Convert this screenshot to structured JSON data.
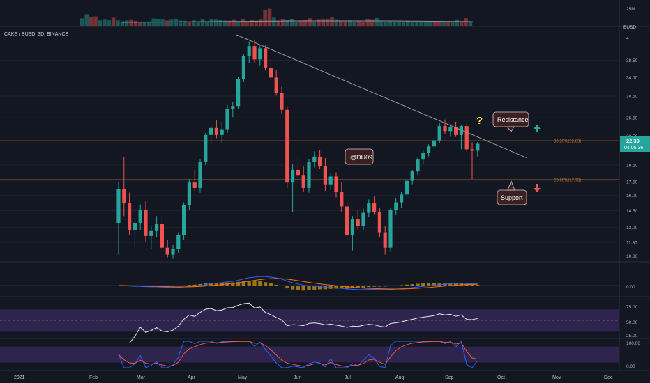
{
  "header": {
    "symbol_line": "CAKE / BUSD, 3D, BINANCE"
  },
  "price_axis": {
    "currency": "BUSD",
    "ticks": [
      "38.50",
      "34.50",
      "30.50",
      "26.50",
      "23.50",
      "19.50",
      "17.50",
      "16.00",
      "14.50",
      "13.00",
      "11.80",
      "10.80"
    ],
    "top_tick_partial": "4",
    "current_price": "22.39",
    "countdown": "04:05:36",
    "current_price_color": "#26a69a"
  },
  "volume_axis": {
    "label": "25M"
  },
  "macd_axis": {
    "zero_label": "0.00"
  },
  "rsi_axis": {
    "ticks": [
      "75.00",
      "50.00",
      "25.00"
    ]
  },
  "stoch_axis": {
    "ticks": [
      "100.00",
      "0.00"
    ]
  },
  "time_axis": {
    "labels": [
      "2021",
      "Feb",
      "Mar",
      "Apr",
      "May",
      "Jun",
      "Jul",
      "Aug",
      "Sep",
      "Oct",
      "Nov",
      "Dec"
    ]
  },
  "fib_levels": [
    {
      "label": "38.20%(22.83)",
      "price": 22.83
    },
    {
      "label": "23.60%(17.73)",
      "price": 17.73
    }
  ],
  "annotations": {
    "watermark": "@DU09",
    "resistance": "Resistance",
    "support": "Support",
    "question": "?"
  },
  "colors": {
    "background": "#131722",
    "up": "#26a69a",
    "down": "#ef5350",
    "fib": "#c0742a",
    "trendline": "#9598a1",
    "macd_line": "#2962ff",
    "signal_line": "#ff6d00",
    "rsi_band": "#3a2a5e",
    "question": "#f5e642",
    "label_bg": "#3b1f22"
  },
  "chart_data": {
    "type": "candlestick",
    "interval": "3D",
    "pair": "CAKE / BUSD",
    "exchange": "BINANCE",
    "candles_ohlc": [
      [
        13.4,
        17.4,
        10.9,
        16.7
      ],
      [
        16.7,
        20.5,
        14.0,
        15.2
      ],
      [
        15.2,
        16.3,
        12.4,
        12.8
      ],
      [
        12.8,
        13.8,
        11.4,
        13.4
      ],
      [
        13.4,
        15.1,
        12.8,
        14.6
      ],
      [
        14.6,
        15.4,
        11.8,
        12.3
      ],
      [
        12.3,
        13.1,
        11.3,
        12.7
      ],
      [
        12.7,
        14.0,
        12.2,
        13.3
      ],
      [
        13.3,
        13.9,
        11.1,
        11.4
      ],
      [
        11.4,
        12.0,
        10.7,
        10.9
      ],
      [
        10.9,
        11.6,
        10.6,
        11.3
      ],
      [
        11.3,
        12.6,
        11.0,
        12.4
      ],
      [
        12.4,
        15.3,
        12.0,
        15.0
      ],
      [
        15.0,
        17.8,
        14.6,
        17.4
      ],
      [
        17.4,
        18.9,
        16.5,
        16.8
      ],
      [
        16.8,
        20.3,
        16.3,
        19.9
      ],
      [
        19.9,
        24.0,
        19.5,
        23.7
      ],
      [
        23.7,
        25.3,
        22.3,
        24.8
      ],
      [
        24.8,
        26.1,
        23.2,
        23.7
      ],
      [
        23.7,
        25.8,
        22.5,
        24.6
      ],
      [
        24.6,
        28.8,
        24.0,
        28.1
      ],
      [
        28.1,
        29.3,
        26.6,
        28.6
      ],
      [
        28.6,
        34.5,
        28.1,
        34.0
      ],
      [
        34.0,
        40.1,
        33.4,
        39.5
      ],
      [
        39.5,
        43.5,
        37.9,
        42.2
      ],
      [
        42.2,
        43.9,
        37.8,
        38.7
      ],
      [
        38.7,
        42.6,
        37.1,
        41.6
      ],
      [
        41.6,
        42.4,
        36.0,
        36.7
      ],
      [
        36.7,
        38.8,
        33.8,
        34.4
      ],
      [
        34.4,
        36.2,
        30.6,
        31.1
      ],
      [
        31.1,
        32.4,
        27.2,
        27.9
      ],
      [
        27.9,
        28.6,
        16.8,
        17.4
      ],
      [
        17.4,
        19.6,
        14.4,
        18.9
      ],
      [
        18.9,
        20.4,
        17.6,
        18.2
      ],
      [
        18.2,
        19.3,
        16.4,
        16.8
      ],
      [
        16.8,
        20.3,
        16.3,
        19.9
      ],
      [
        19.9,
        21.3,
        19.2,
        20.6
      ],
      [
        20.6,
        21.5,
        19.0,
        19.4
      ],
      [
        19.4,
        20.4,
        16.5,
        17.2
      ],
      [
        17.2,
        18.6,
        16.6,
        18.1
      ],
      [
        18.1,
        18.6,
        15.8,
        16.4
      ],
      [
        16.4,
        17.4,
        14.4,
        14.9
      ],
      [
        14.9,
        15.4,
        11.9,
        12.4
      ],
      [
        12.4,
        14.0,
        11.2,
        13.7
      ],
      [
        13.7,
        14.6,
        12.8,
        13.1
      ],
      [
        13.1,
        14.7,
        12.8,
        14.3
      ],
      [
        14.3,
        15.6,
        13.9,
        15.2
      ],
      [
        15.2,
        15.9,
        14.1,
        14.4
      ],
      [
        14.4,
        14.8,
        12.2,
        12.6
      ],
      [
        12.6,
        13.1,
        10.9,
        11.4
      ],
      [
        11.4,
        14.8,
        11.1,
        14.6
      ],
      [
        14.6,
        15.7,
        14.1,
        15.3
      ],
      [
        15.3,
        16.4,
        14.8,
        16.1
      ],
      [
        16.1,
        17.8,
        15.7,
        17.6
      ],
      [
        17.6,
        18.9,
        17.2,
        18.7
      ],
      [
        18.7,
        20.5,
        18.3,
        20.2
      ],
      [
        20.2,
        21.5,
        19.6,
        21.1
      ],
      [
        21.1,
        22.3,
        20.6,
        22.0
      ],
      [
        22.0,
        23.2,
        21.6,
        22.9
      ],
      [
        22.9,
        25.6,
        22.5,
        25.1
      ],
      [
        25.1,
        26.2,
        23.8,
        24.3
      ],
      [
        24.3,
        25.4,
        23.4,
        25.0
      ],
      [
        25.0,
        25.8,
        23.4,
        23.7
      ],
      [
        23.7,
        25.3,
        21.6,
        25.1
      ],
      [
        25.1,
        25.4,
        21.3,
        21.6
      ],
      [
        21.6,
        22.6,
        17.8,
        21.4
      ],
      [
        21.4,
        22.6,
        20.6,
        22.39
      ]
    ],
    "volume_scale_label": "25M",
    "trendline": {
      "from": {
        "candle": 24,
        "price": 44.8
      },
      "to": {
        "candle": 74,
        "price": 21.0
      }
    },
    "fibonacci": [
      {
        "level": "38.20%",
        "price": 22.83
      },
      {
        "level": "23.60%",
        "price": 17.73
      }
    ],
    "y_scale": "log",
    "indicators": [
      "Volume",
      "MACD",
      "RSI",
      "Stochastic RSI"
    ]
  }
}
